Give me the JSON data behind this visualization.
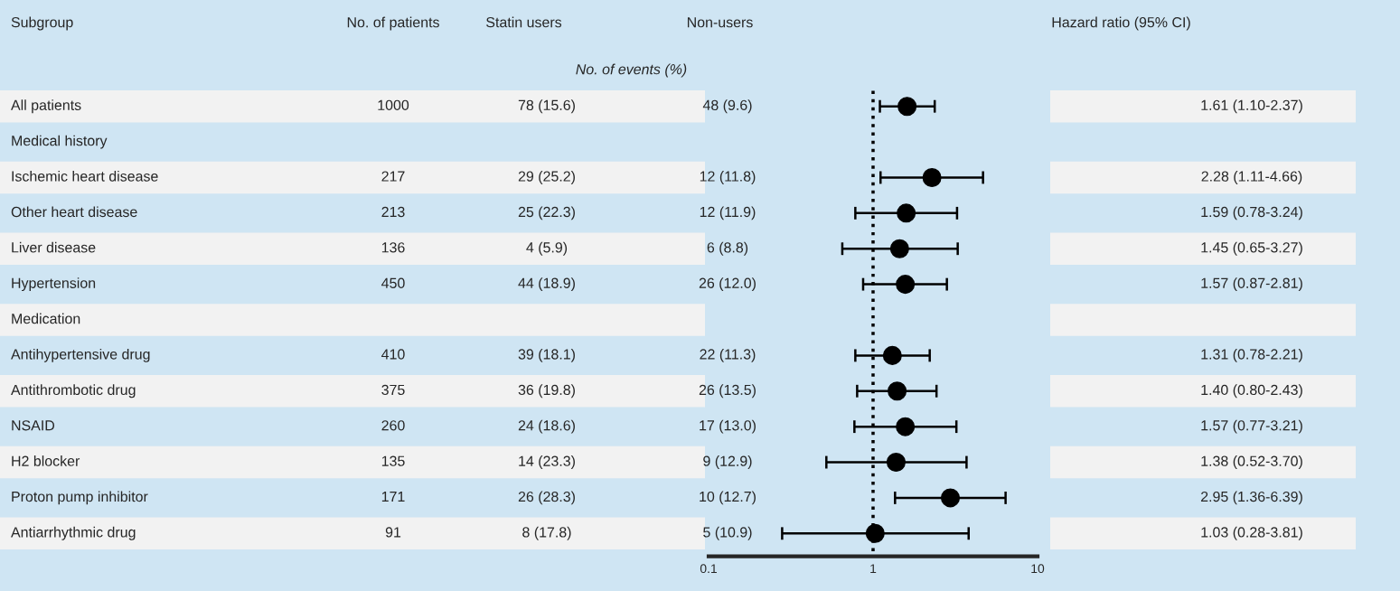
{
  "chart_data": [
    {
      "type": "other",
      "title": "Subgroup",
      "annotations": [
        "All patients",
        "Medical history",
        "Ischemic heart disease",
        "Other heart disease",
        "Liver disease",
        "Hypertension",
        "Medication",
        "Antihypertensive drug",
        "Antithrombotic drug",
        "NSAID",
        "H2 blocker",
        "Proton pump inhibitor",
        "Antiarrhythmic drug"
      ]
    },
    {
      "type": "other",
      "title": "No. of patients",
      "annotations": [
        "1000",
        null,
        "217",
        "213",
        "136",
        "450",
        null,
        "410",
        "375",
        "260",
        "135",
        "171",
        "91"
      ]
    },
    {
      "type": "other",
      "title": "Statin users",
      "subtitle": "No. of events (%)",
      "annotations": [
        "78 (15.6)",
        null,
        "29 (25.2)",
        "25 (22.3)",
        "4 (5.9)",
        "44 (18.9)",
        null,
        "39 (18.1)",
        "36 (19.8)",
        "24 (18.6)",
        "14 (23.3)",
        "26 (28.3)",
        "8 (17.8)"
      ]
    },
    {
      "type": "other",
      "title": "Non-users",
      "annotations": [
        "48 (9.6)",
        null,
        "12 (11.8)",
        "12 (11.9)",
        "6 (8.8)",
        "26 (12.0)",
        null,
        "22 (11.3)",
        "26 (13.5)",
        "17 (13.0)",
        "9 (12.9)",
        "10 (12.7)",
        "5 (10.9)"
      ]
    },
    {
      "type": "scatter",
      "orientation": "horizontal",
      "categories": [
        null,
        null,
        null,
        null,
        null,
        null,
        null,
        null,
        null,
        null,
        null,
        null,
        null
      ],
      "values": [
        1.61,
        null,
        2.28,
        1.59,
        1.45,
        1.57,
        null,
        1.31,
        1.4,
        1.57,
        1.38,
        2.95,
        1.03
      ],
      "errors": [
        [
          1.1,
          2.37
        ],
        null,
        [
          1.11,
          4.66
        ],
        [
          0.78,
          3.24
        ],
        [
          0.65,
          3.27
        ],
        [
          0.87,
          2.81
        ],
        null,
        [
          0.78,
          2.21
        ],
        [
          0.8,
          2.43
        ],
        [
          0.77,
          3.21
        ],
        [
          0.52,
          3.7
        ],
        [
          1.36,
          6.39
        ],
        [
          0.28,
          3.81
        ]
      ],
      "color": "#000000",
      "marker": "circle",
      "log": "x",
      "xlim": [
        0.1,
        10
      ],
      "xticks": [
        0.1,
        1,
        10
      ],
      "ref_lines": [
        {
          "axis": "x",
          "value": 1,
          "line_style": "dotted",
          "color": "#000000"
        }
      ]
    },
    {
      "type": "other",
      "title": "Hazard ratio (95% CI)",
      "annotations": [
        "1.61 (1.10-2.37)",
        null,
        "2.28 (1.11-4.66)",
        "1.59 (0.78-3.24)",
        "1.45 (0.65-3.27)",
        "1.57 (0.87-2.81)",
        null,
        "1.31 (0.78-2.21)",
        "1.40 (0.80-2.43)",
        "1.57 (0.77-3.21)",
        "1.38 (0.52-3.70)",
        "2.95 (1.36-6.39)",
        "1.03 (0.28-3.81)"
      ]
    }
  ]
}
